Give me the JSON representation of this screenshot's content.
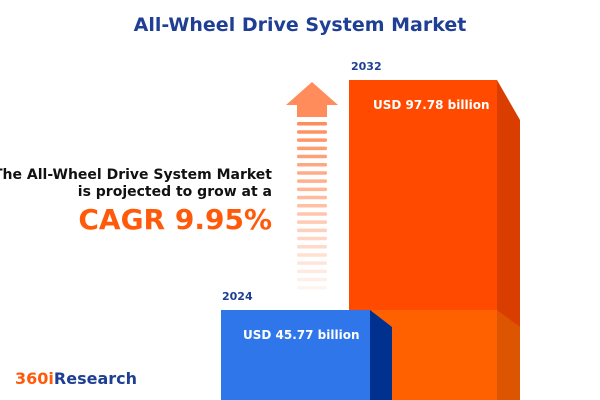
{
  "title": "All-Wheel Drive System Market",
  "headline": {
    "line1": "The All-Wheel Drive System Market",
    "line2": "is projected to grow at a",
    "cagr": "CAGR 9.95%"
  },
  "logo": {
    "part1": "360i",
    "part2": "Research"
  },
  "colors": {
    "title": "#1f3f94",
    "bar_2024": "#2f76eb",
    "bar_2032": "#ff4a00",
    "accent": "#ff5a0a",
    "arrow": "#ff8c5a"
  },
  "chart_data": {
    "type": "bar",
    "categories": [
      "2024",
      "2032"
    ],
    "values": [
      45.77,
      97.78
    ],
    "unit": "USD billion",
    "labels": [
      "USD 45.77 billion",
      "USD 97.78 billion"
    ],
    "cagr": "9.95%"
  }
}
